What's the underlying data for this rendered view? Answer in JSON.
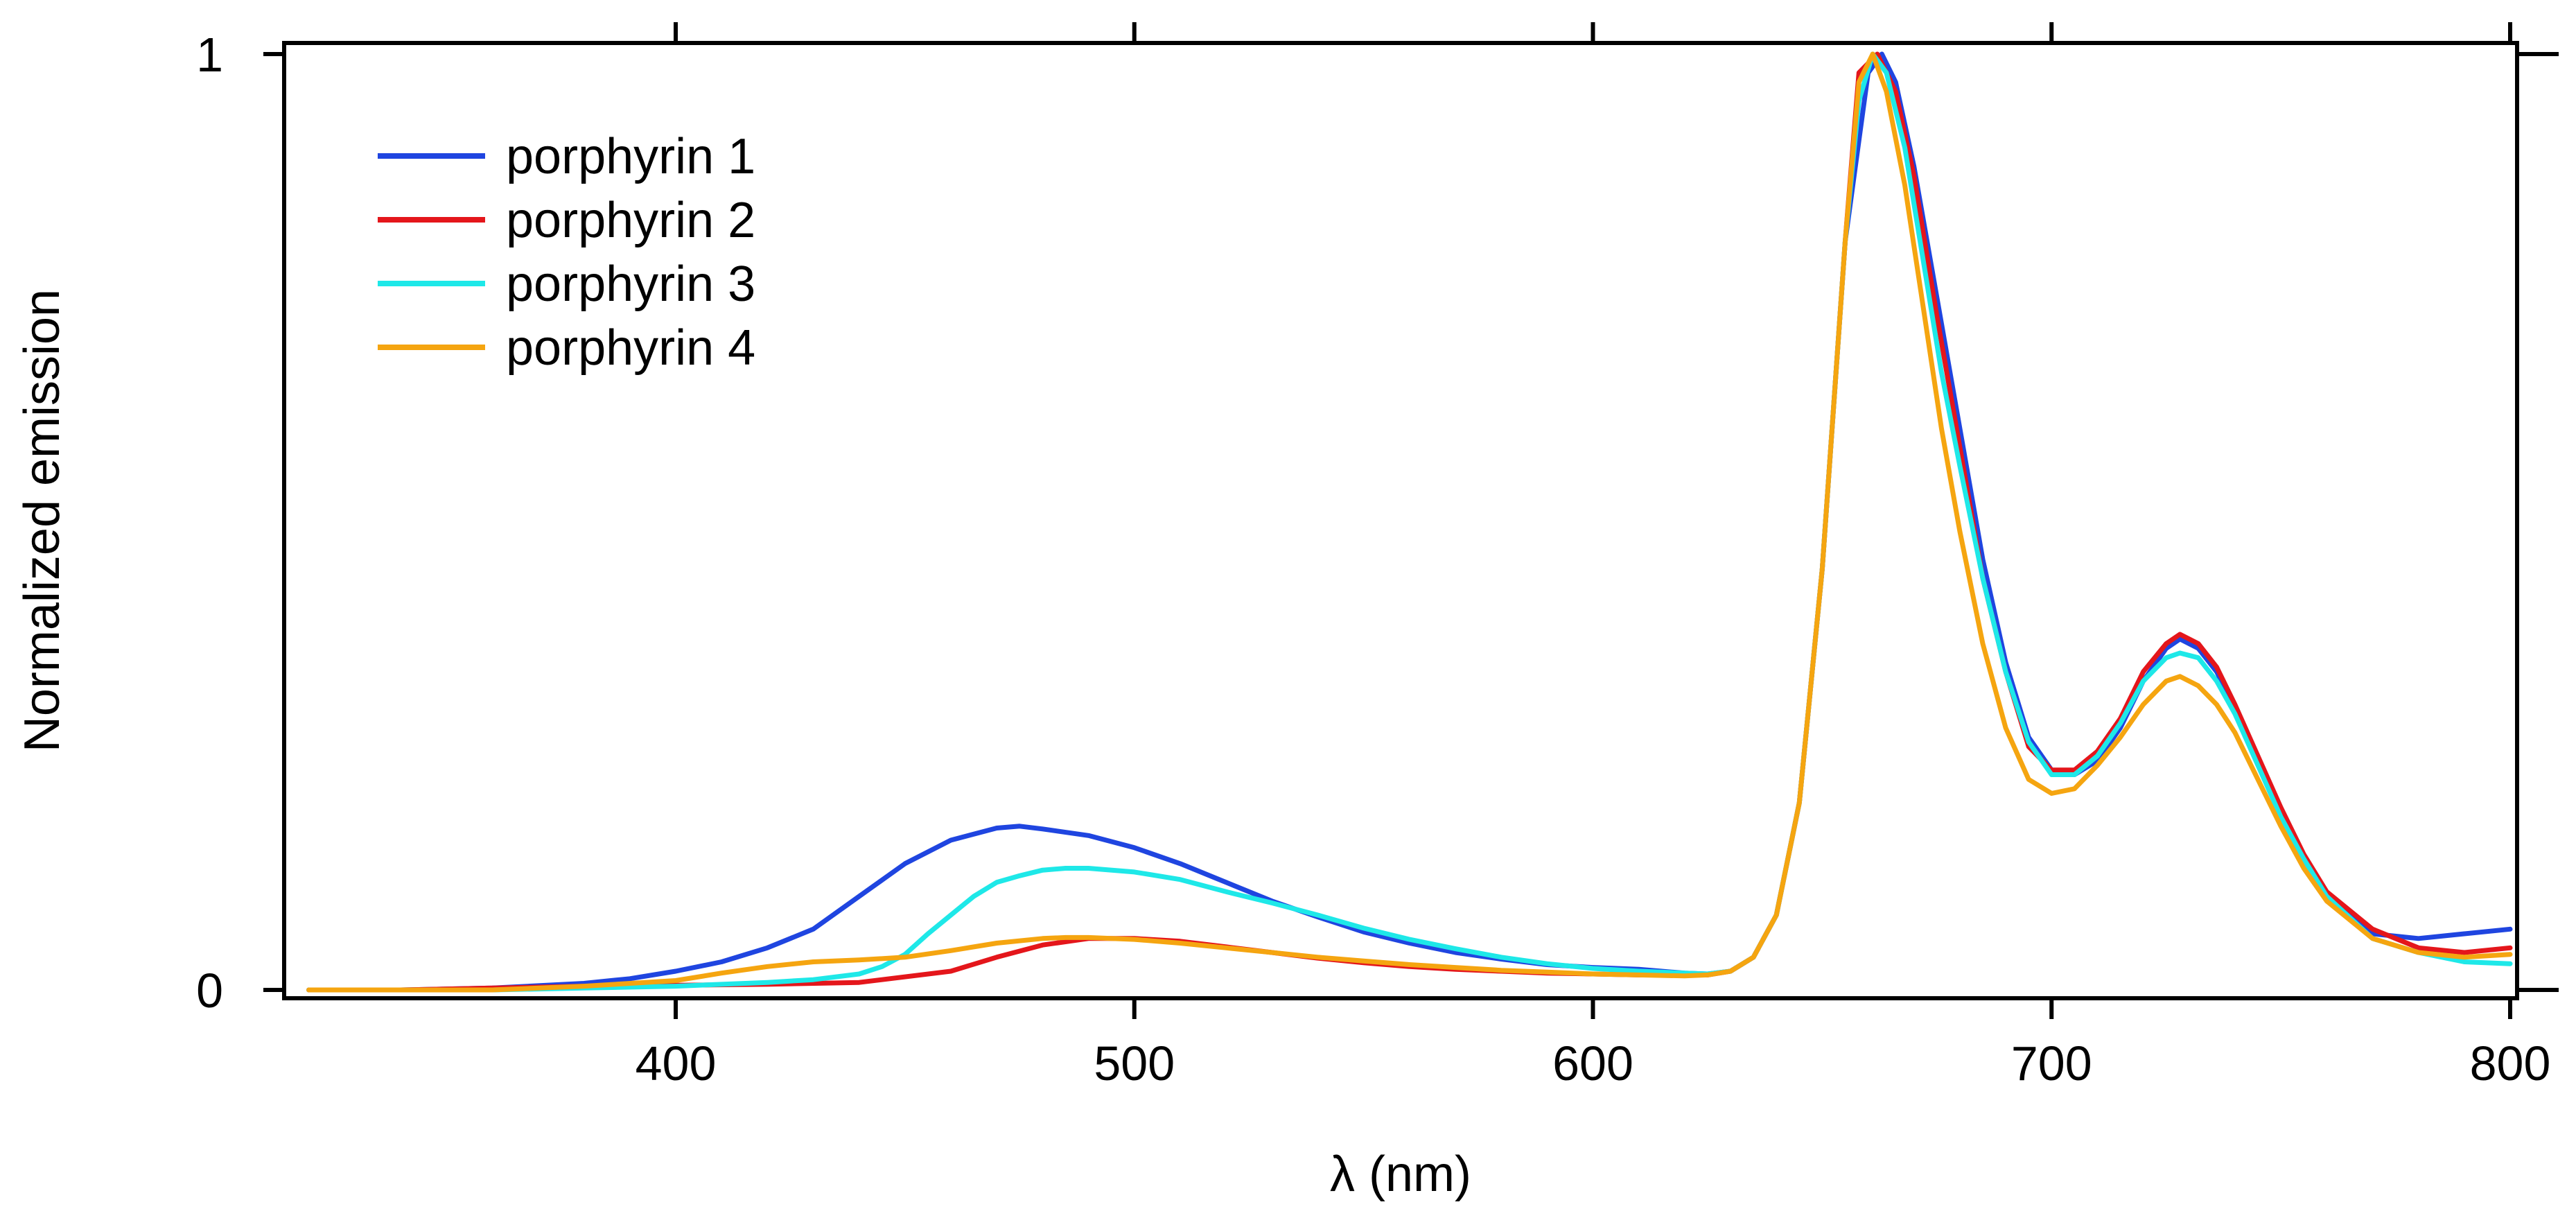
{
  "chart_data": {
    "type": "line",
    "title": "",
    "xlabel": "λ (nm)",
    "ylabel": "Normalized emission",
    "xlim": [
      315,
      800
    ],
    "ylim": [
      0,
      1
    ],
    "x_ticks": [
      400,
      500,
      600,
      700,
      800
    ],
    "x_tick_labels": [
      "400",
      "500",
      "600",
      "700",
      "800"
    ],
    "y_ticks": [
      0,
      1
    ],
    "y_tick_labels": [
      "0",
      "1"
    ],
    "grid": false,
    "legend_position": "top-left",
    "series": [
      {
        "name": "porphyrin 1",
        "color": "#1f45e0",
        "x": [
          320,
          340,
          360,
          380,
          390,
          400,
          410,
          420,
          430,
          440,
          450,
          460,
          470,
          475,
          480,
          490,
          500,
          510,
          520,
          530,
          540,
          550,
          560,
          570,
          580,
          590,
          600,
          610,
          620,
          625,
          630,
          635,
          640,
          645,
          650,
          655,
          660,
          663,
          666,
          670,
          675,
          680,
          685,
          690,
          695,
          700,
          705,
          710,
          715,
          720,
          725,
          728,
          732,
          736,
          740,
          745,
          750,
          755,
          760,
          770,
          780,
          790,
          800
        ],
        "y": [
          0,
          0,
          0.002,
          0.007,
          0.012,
          0.02,
          0.03,
          0.045,
          0.065,
          0.1,
          0.135,
          0.16,
          0.173,
          0.175,
          0.172,
          0.165,
          0.152,
          0.135,
          0.115,
          0.095,
          0.078,
          0.062,
          0.05,
          0.04,
          0.033,
          0.027,
          0.024,
          0.022,
          0.018,
          0.017,
          0.02,
          0.035,
          0.08,
          0.2,
          0.45,
          0.8,
          0.98,
          1.0,
          0.97,
          0.88,
          0.74,
          0.6,
          0.46,
          0.35,
          0.27,
          0.235,
          0.23,
          0.245,
          0.28,
          0.33,
          0.365,
          0.375,
          0.365,
          0.34,
          0.3,
          0.245,
          0.19,
          0.14,
          0.1,
          0.06,
          0.055,
          0.06,
          0.065
        ]
      },
      {
        "name": "porphyrin 2",
        "color": "#e4161b",
        "x": [
          320,
          340,
          360,
          380,
          400,
          420,
          440,
          460,
          470,
          480,
          490,
          500,
          510,
          520,
          530,
          540,
          550,
          560,
          570,
          580,
          590,
          600,
          610,
          620,
          625,
          630,
          635,
          640,
          645,
          650,
          655,
          658,
          662,
          666,
          670,
          675,
          680,
          685,
          690,
          695,
          700,
          705,
          710,
          715,
          720,
          725,
          728,
          732,
          736,
          740,
          745,
          750,
          755,
          760,
          770,
          780,
          790,
          800
        ],
        "y": [
          0,
          0,
          0.002,
          0.004,
          0.005,
          0.006,
          0.008,
          0.02,
          0.035,
          0.048,
          0.055,
          0.055,
          0.052,
          0.046,
          0.04,
          0.034,
          0.029,
          0.025,
          0.022,
          0.02,
          0.018,
          0.017,
          0.016,
          0.016,
          0.016,
          0.02,
          0.035,
          0.08,
          0.2,
          0.45,
          0.8,
          0.98,
          1.0,
          0.96,
          0.87,
          0.72,
          0.58,
          0.44,
          0.34,
          0.26,
          0.235,
          0.235,
          0.255,
          0.29,
          0.34,
          0.37,
          0.38,
          0.37,
          0.345,
          0.305,
          0.25,
          0.195,
          0.145,
          0.105,
          0.065,
          0.045,
          0.04,
          0.045
        ]
      },
      {
        "name": "porphyrin 3",
        "color": "#1ee8e8",
        "x": [
          320,
          340,
          360,
          380,
          400,
          420,
          430,
          440,
          445,
          450,
          455,
          460,
          465,
          470,
          475,
          480,
          485,
          490,
          500,
          510,
          520,
          530,
          540,
          550,
          560,
          570,
          580,
          590,
          600,
          610,
          620,
          625,
          630,
          635,
          640,
          645,
          650,
          655,
          658,
          661,
          664,
          668,
          672,
          676,
          680,
          685,
          690,
          695,
          700,
          705,
          710,
          715,
          720,
          725,
          728,
          732,
          736,
          740,
          745,
          750,
          755,
          760,
          770,
          780,
          790,
          800
        ],
        "y": [
          0,
          0,
          0,
          0.002,
          0.004,
          0.008,
          0.011,
          0.017,
          0.025,
          0.038,
          0.06,
          0.08,
          0.1,
          0.115,
          0.122,
          0.128,
          0.13,
          0.13,
          0.126,
          0.118,
          0.105,
          0.093,
          0.08,
          0.066,
          0.054,
          0.044,
          0.035,
          0.028,
          0.023,
          0.02,
          0.018,
          0.017,
          0.02,
          0.035,
          0.08,
          0.2,
          0.45,
          0.8,
          0.95,
          1.0,
          0.98,
          0.9,
          0.78,
          0.66,
          0.56,
          0.44,
          0.34,
          0.265,
          0.23,
          0.23,
          0.25,
          0.285,
          0.33,
          0.355,
          0.36,
          0.355,
          0.33,
          0.295,
          0.24,
          0.185,
          0.14,
          0.1,
          0.055,
          0.04,
          0.03,
          0.028
        ]
      },
      {
        "name": "porphyrin 4",
        "color": "#f5a510",
        "x": [
          320,
          340,
          360,
          380,
          400,
          410,
          420,
          430,
          440,
          450,
          460,
          470,
          480,
          485,
          490,
          500,
          510,
          520,
          530,
          540,
          550,
          560,
          570,
          580,
          590,
          600,
          610,
          620,
          625,
          630,
          635,
          640,
          645,
          650,
          655,
          658,
          661,
          664,
          668,
          672,
          676,
          680,
          685,
          690,
          695,
          700,
          705,
          710,
          715,
          720,
          725,
          728,
          732,
          736,
          740,
          745,
          750,
          755,
          760,
          770,
          780,
          790,
          800
        ],
        "y": [
          0,
          0,
          0,
          0.004,
          0.01,
          0.018,
          0.025,
          0.03,
          0.032,
          0.035,
          0.042,
          0.05,
          0.055,
          0.056,
          0.056,
          0.054,
          0.05,
          0.045,
          0.04,
          0.035,
          0.031,
          0.027,
          0.024,
          0.021,
          0.019,
          0.017,
          0.016,
          0.015,
          0.016,
          0.02,
          0.035,
          0.08,
          0.2,
          0.45,
          0.8,
          0.97,
          1.0,
          0.96,
          0.86,
          0.73,
          0.6,
          0.49,
          0.37,
          0.28,
          0.225,
          0.21,
          0.215,
          0.24,
          0.27,
          0.305,
          0.33,
          0.335,
          0.325,
          0.305,
          0.275,
          0.225,
          0.175,
          0.13,
          0.095,
          0.055,
          0.04,
          0.035,
          0.038
        ]
      }
    ]
  }
}
